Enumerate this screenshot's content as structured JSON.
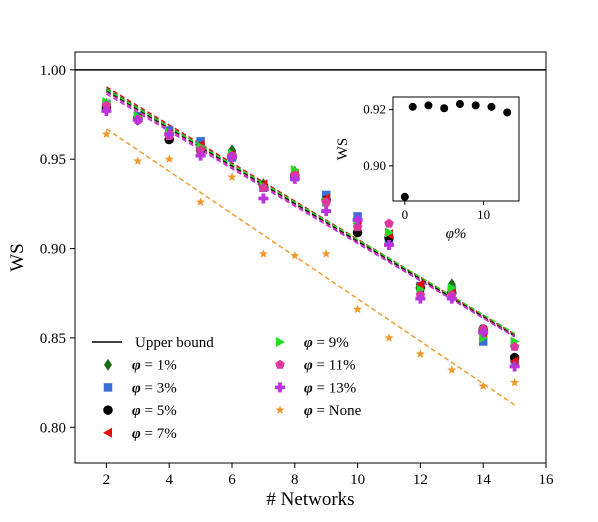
{
  "chart_data": [
    {
      "type": "scatter",
      "xlabel": "# Networks",
      "ylabel": "WS",
      "xlim": [
        1,
        16
      ],
      "ylim": [
        0.78,
        1.01
      ],
      "xticks": [
        2,
        4,
        6,
        8,
        10,
        12,
        14,
        16
      ],
      "yticks": [
        0.8,
        0.85,
        0.9,
        0.95,
        1.0
      ],
      "xtick_labels": [
        "2",
        "4",
        "6",
        "8",
        "10",
        "12",
        "14",
        "16"
      ],
      "ytick_labels": [
        "0.80",
        "0.85",
        "0.90",
        "0.95",
        "1.00"
      ],
      "legend_position": "bottom-left",
      "upper_bound": {
        "label": "Upper bound",
        "value": 1.0,
        "color": "#000000"
      },
      "x": [
        2,
        3,
        4,
        5,
        6,
        7,
        8,
        9,
        10,
        11,
        12,
        13,
        14,
        15
      ],
      "series": [
        {
          "phi": "φ",
          "suffix": " =  1%",
          "color": "#1b6b1b",
          "marker": "diamond",
          "values": [
            0.981,
            0.972,
            0.962,
            0.957,
            0.955,
            0.936,
            0.943,
            0.925,
            0.916,
            0.907,
            0.876,
            0.88,
            0.852,
            0.836
          ],
          "fit": [
            0.9895,
            0.8515
          ]
        },
        {
          "phi": "φ",
          "suffix": " =  3%",
          "color": "#3b6fd6",
          "marker": "square",
          "values": [
            0.981,
            0.974,
            0.966,
            0.96,
            0.951,
            0.934,
            0.94,
            0.93,
            0.918,
            0.905,
            0.879,
            0.877,
            0.848,
            0.838
          ],
          "fit": [
            0.988,
            0.851
          ]
        },
        {
          "phi": "φ",
          "suffix": " =  5%",
          "color": "#000000",
          "marker": "circle",
          "values": [
            0.979,
            0.973,
            0.961,
            0.955,
            0.952,
            0.935,
            0.941,
            0.927,
            0.909,
            0.906,
            0.878,
            0.875,
            0.855,
            0.839
          ],
          "fit": [
            0.9885,
            0.8512
          ]
        },
        {
          "phi": "φ",
          "suffix": " =  7%",
          "color": "#e01010",
          "marker": "triangle-left",
          "values": [
            0.98,
            0.973,
            0.964,
            0.958,
            0.952,
            0.936,
            0.942,
            0.928,
            0.914,
            0.908,
            0.88,
            0.876,
            0.853,
            0.837
          ],
          "fit": [
            0.9905,
            0.852
          ]
        },
        {
          "phi": "φ",
          "suffix": " =  9%",
          "color": "#22dd22",
          "marker": "triangle-right",
          "values": [
            0.982,
            0.974,
            0.965,
            0.957,
            0.953,
            0.935,
            0.944,
            0.926,
            0.913,
            0.909,
            0.877,
            0.878,
            0.85,
            0.848
          ],
          "fit": [
            0.989,
            0.8525
          ]
        },
        {
          "phi": "φ",
          "suffix": " = 11%",
          "color": "#e0389a",
          "marker": "pentagon",
          "values": [
            0.98,
            0.972,
            0.963,
            0.955,
            0.952,
            0.934,
            0.941,
            0.926,
            0.912,
            0.914,
            0.874,
            0.874,
            0.855,
            0.845
          ],
          "fit": [
            0.9875,
            0.8508
          ]
        },
        {
          "phi": "φ",
          "suffix": " = 13%",
          "color": "#bb33dd",
          "marker": "plus",
          "values": [
            0.977,
            0.972,
            0.964,
            0.952,
            0.951,
            0.928,
            0.939,
            0.921,
            0.916,
            0.902,
            0.872,
            0.872,
            0.853,
            0.834
          ],
          "fit": [
            0.9865,
            0.8505
          ]
        },
        {
          "phi": "φ",
          "suffix": "  = None",
          "color": "#f0982a",
          "marker": "star",
          "values": [
            0.964,
            0.949,
            0.95,
            0.926,
            0.94,
            0.897,
            0.896,
            0.897,
            0.866,
            0.85,
            0.841,
            0.832,
            0.823,
            0.825
          ],
          "fit": [
            0.967,
            0.8125
          ]
        }
      ]
    },
    {
      "type": "scatter",
      "role": "inset",
      "xlabel": "φ%",
      "ylabel": "WS",
      "xlim": [
        -1.5,
        14.5
      ],
      "ylim": [
        0.8875,
        0.9245
      ],
      "xticks": [
        0,
        10
      ],
      "yticks": [
        0.9,
        0.92
      ],
      "xtick_labels": [
        "0",
        "10"
      ],
      "ytick_labels": [
        "0.90",
        "0.92"
      ],
      "x": [
        0,
        1,
        3,
        5,
        7,
        9,
        11,
        13
      ],
      "y": [
        0.889,
        0.921,
        0.9215,
        0.9205,
        0.922,
        0.9215,
        0.921,
        0.919
      ],
      "color": "#000000"
    }
  ]
}
